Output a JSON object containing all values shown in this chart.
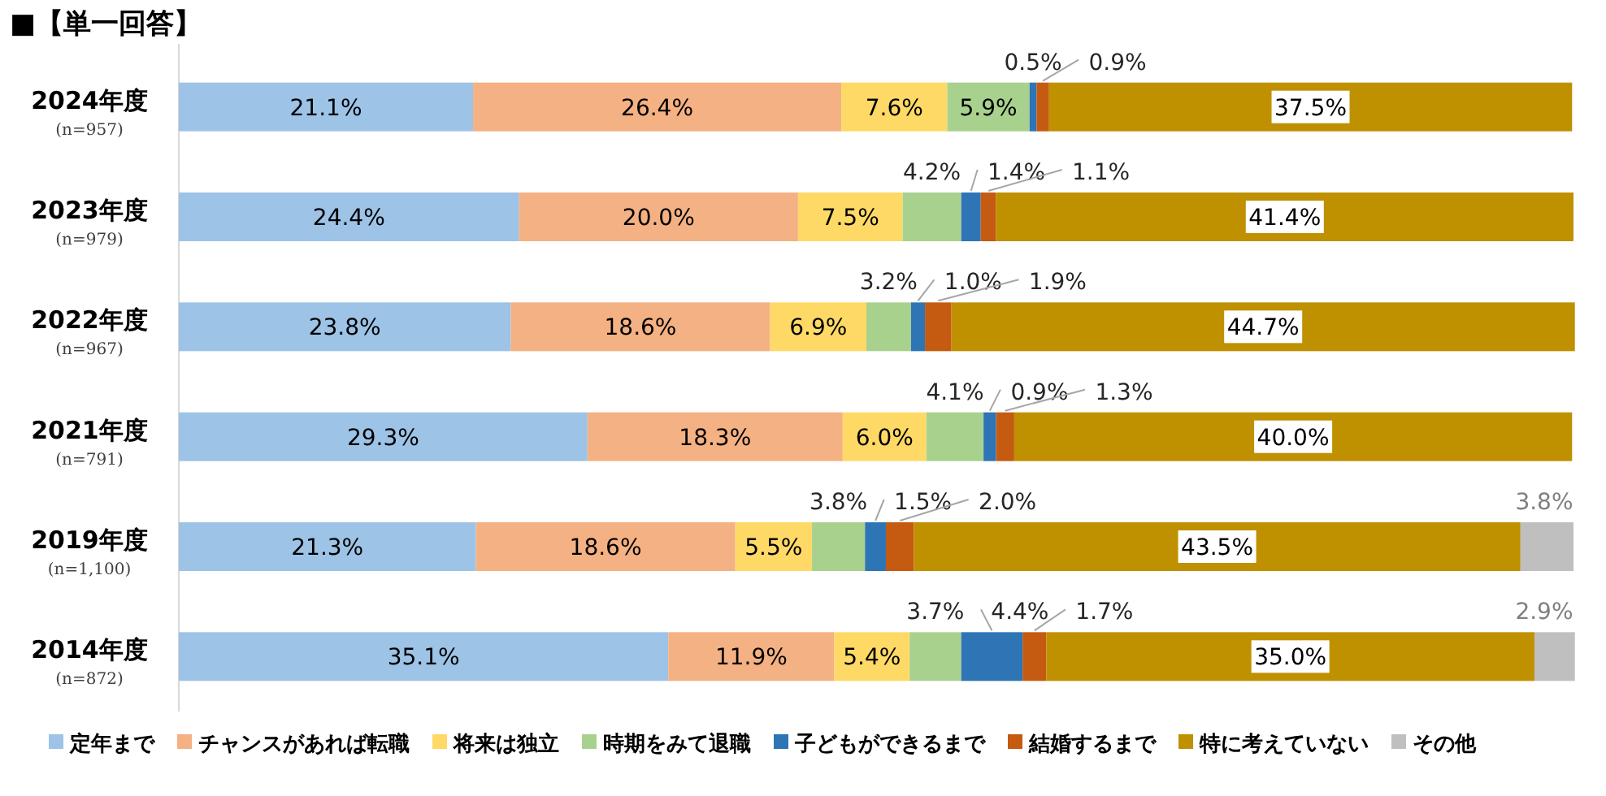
{
  "chart_data": {
    "type": "bar",
    "orientation": "horizontal",
    "stacked": true,
    "title": "■【単一回答】",
    "categories": [
      "2024年度\n(n=957)",
      "2023年度\n(n=979)",
      "2022年度\n(n=967)",
      "2021年度\n(n=791)",
      "2019年度\n(n=1,100)",
      "2014年度\n(n=872)"
    ],
    "xlim": [
      0,
      100
    ],
    "tick_labels": "y",
    "legend": "bottom",
    "series": [
      {
        "name": "定年まで",
        "color": "#9dc3e6",
        "values": [
          21.1,
          24.4,
          23.8,
          29.3,
          21.3,
          35.1
        ],
        "value_labels": [
          "21.1%",
          "24.4%",
          "23.8%",
          "29.3%",
          "21.3%",
          "35.1%"
        ]
      },
      {
        "name": "チャンスがあれば転職",
        "color": "#f4b183",
        "values": [
          26.4,
          20.0,
          18.6,
          18.3,
          18.6,
          11.9
        ],
        "value_labels": [
          "26.4%",
          "20.0%",
          "18.6%",
          "18.3%",
          "18.6%",
          "11.9%"
        ]
      },
      {
        "name": "将来は独立",
        "color": "#ffd966",
        "values": [
          7.6,
          7.5,
          6.9,
          6.0,
          5.5,
          5.4
        ],
        "value_labels": [
          "7.6%",
          "7.5%",
          "6.9%",
          "6.0%",
          "5.5%",
          "5.4%"
        ]
      },
      {
        "name": "時期をみて退職",
        "color": "#a9d18e",
        "values": [
          5.9,
          4.2,
          3.2,
          4.1,
          3.8,
          3.7
        ],
        "value_labels": [
          "5.9%",
          "4.2%",
          "3.2%",
          "4.1%",
          "3.8%",
          "3.7%"
        ]
      },
      {
        "name": "子どもができるまで",
        "color": "#2e75b6",
        "values": [
          0.5,
          1.4,
          1.0,
          0.9,
          1.5,
          4.4
        ],
        "value_labels": [
          "0.5%",
          "1.4%",
          "1.0%",
          "0.9%",
          "1.5%",
          "4.4%"
        ]
      },
      {
        "name": "結婚するまで",
        "color": "#c55a11",
        "values": [
          0.9,
          1.1,
          1.9,
          1.3,
          2.0,
          1.7
        ],
        "value_labels": [
          "0.9%",
          "1.1%",
          "1.9%",
          "1.3%",
          "2.0%",
          "1.7%"
        ]
      },
      {
        "name": "特に考えていない",
        "color": "#bf9000",
        "values": [
          37.5,
          41.4,
          44.7,
          40.0,
          43.5,
          35.0
        ],
        "value_labels": [
          "37.5%",
          "41.4%",
          "44.7%",
          "40.0%",
          "43.5%",
          "35.0%"
        ]
      },
      {
        "name": "その他",
        "color": "#bfbfbf",
        "values": [
          null,
          null,
          null,
          null,
          3.8,
          2.9
        ],
        "value_labels": [
          null,
          null,
          null,
          null,
          "3.8%",
          "2.9%"
        ]
      }
    ]
  }
}
